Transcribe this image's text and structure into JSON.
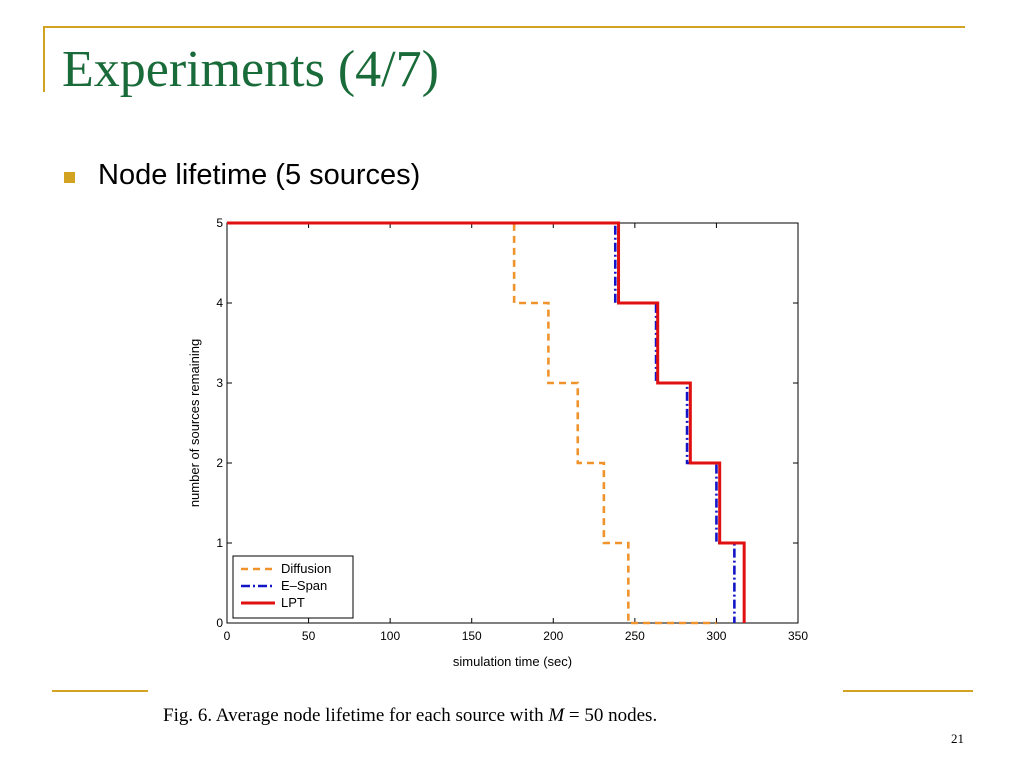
{
  "slide": {
    "title": "Experiments (4/7)",
    "bullet": "Node lifetime (5 sources)",
    "caption_prefix": "Fig. 6.   Average node lifetime for each source with ",
    "caption_math": "M",
    "caption_suffix": " = 50 nodes.",
    "page_number": "21",
    "accent_color": "#d1a321",
    "title_color": "#1a6b3a"
  },
  "chart_data": {
    "type": "line",
    "title": "",
    "xlabel": "simulation time (sec)",
    "ylabel": "number of sources remaining",
    "xlim": [
      0,
      350
    ],
    "ylim": [
      0,
      5
    ],
    "xticks": [
      0,
      50,
      100,
      150,
      200,
      250,
      300,
      350
    ],
    "yticks": [
      0,
      1,
      2,
      3,
      4,
      5
    ],
    "grid": false,
    "legend_position": "bottom-left",
    "series": [
      {
        "name": "Diffusion",
        "color": "#f0932b",
        "style": "dashed",
        "x": [
          0,
          176,
          176,
          197,
          197,
          215,
          215,
          231,
          231,
          246,
          246,
          300
        ],
        "y": [
          5,
          5,
          4,
          4,
          3,
          3,
          2,
          2,
          1,
          1,
          0,
          0
        ]
      },
      {
        "name": "E–Span",
        "color": "#1515c8",
        "style": "dashdot",
        "x": [
          0,
          238,
          238,
          263,
          263,
          282,
          282,
          300,
          300,
          311,
          311
        ],
        "y": [
          5,
          5,
          4,
          4,
          3,
          3,
          2,
          2,
          1,
          1,
          0
        ]
      },
      {
        "name": "LPT",
        "color": "#e01010",
        "style": "solid",
        "x": [
          0,
          240,
          240,
          264,
          264,
          284,
          284,
          302,
          302,
          317,
          317
        ],
        "y": [
          5,
          5,
          4,
          4,
          3,
          3,
          2,
          2,
          1,
          1,
          0
        ]
      }
    ]
  }
}
